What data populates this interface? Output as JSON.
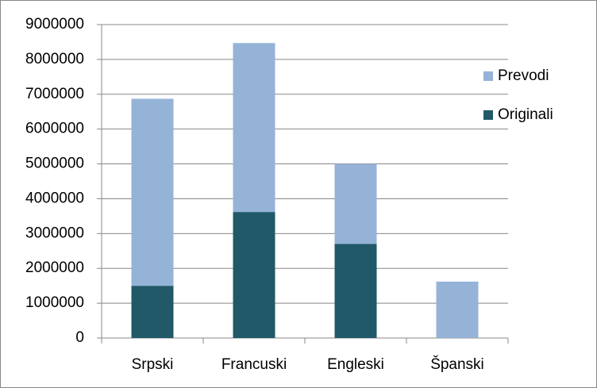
{
  "chart_data": {
    "type": "stacked_bar",
    "categories": [
      "Srpski",
      "Francuski",
      "Engleski",
      "Španski"
    ],
    "series": [
      {
        "name": "Originali",
        "color": "#215968",
        "values": [
          1500000,
          3620000,
          2700000,
          0
        ]
      },
      {
        "name": "Prevodi",
        "color": "#95b3d7",
        "values": [
          5370000,
          4850000,
          2300000,
          1620000
        ]
      }
    ],
    "ylim": [
      0,
      9000000
    ],
    "yticks": [
      0,
      1000000,
      2000000,
      3000000,
      4000000,
      5000000,
      6000000,
      7000000,
      8000000,
      9000000
    ],
    "grid": true,
    "legend": "right"
  }
}
